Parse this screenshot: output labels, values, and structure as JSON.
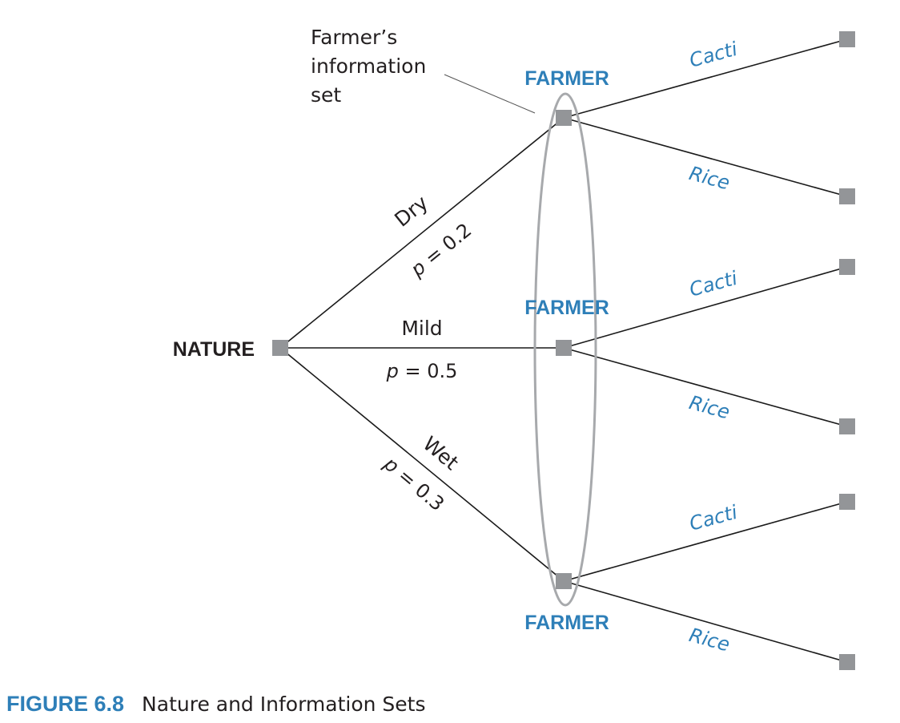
{
  "diagram": {
    "root_label": "NATURE",
    "annotation_lines": [
      "Farmer’s",
      "information",
      "set"
    ],
    "player_label": "FARMER",
    "branches": [
      {
        "state": "Dry",
        "probability": "p = 0.2",
        "p_symbol": "p",
        "p_value": "= 0.2"
      },
      {
        "state": "Mild",
        "probability": "p = 0.5",
        "p_symbol": "p",
        "p_value": "= 0.5"
      },
      {
        "state": "Wet",
        "probability": "p = 0.3",
        "p_symbol": "p",
        "p_value": "= 0.3"
      }
    ],
    "actions": [
      "Cacti",
      "Rice"
    ],
    "colors": {
      "accent": "#2e7fb8",
      "node": "#939598",
      "edge": "#1a1a1a",
      "information_set": "#a7a9ac"
    }
  },
  "caption": {
    "number": "FIGURE 6.8",
    "title": "Nature and Information Sets"
  }
}
